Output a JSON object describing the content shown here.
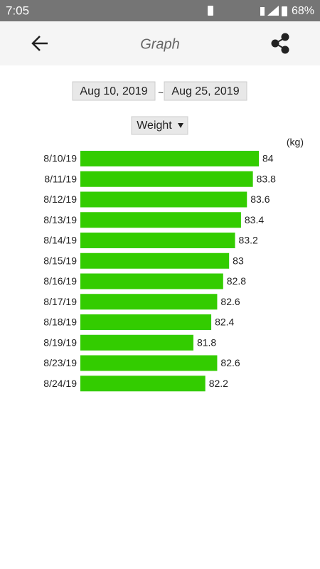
{
  "status_bar": {
    "time": "7:05",
    "battery": "68%"
  },
  "toolbar": {
    "title": "Graph"
  },
  "date_range": {
    "start": "Aug 10, 2019",
    "separator": "~",
    "end": "Aug 25, 2019"
  },
  "selector": {
    "label": "Weight"
  },
  "chart_data": {
    "type": "bar",
    "orientation": "horizontal",
    "unit_label": "(kg)",
    "categories": [
      "8/10/19",
      "8/11/19",
      "8/12/19",
      "8/13/19",
      "8/14/19",
      "8/15/19",
      "8/16/19",
      "8/17/19",
      "8/18/19",
      "8/19/19",
      "8/23/19",
      "8/24/19"
    ],
    "values": [
      84,
      83.8,
      83.6,
      83.4,
      83.2,
      83,
      82.8,
      82.6,
      82.4,
      81.8,
      82.6,
      82.2
    ],
    "color": "#33cc00",
    "xlim": [
      78,
      84
    ]
  }
}
